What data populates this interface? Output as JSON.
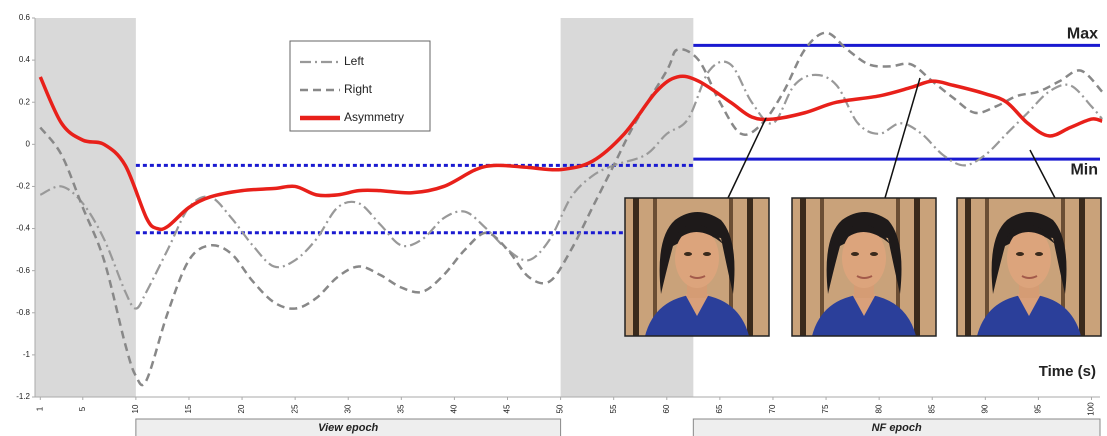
{
  "chart_data": {
    "type": "line",
    "xlabel": "Time (s)",
    "xlim": [
      0.5,
      100.8
    ],
    "ylim": [
      -1.2,
      0.6
    ],
    "yticks": [
      0.6,
      0.4,
      0.2,
      0,
      -0.2,
      -0.4,
      -0.6,
      -0.8,
      -1,
      -1.2
    ],
    "xticks": [
      1,
      5,
      10,
      15,
      20,
      25,
      30,
      35,
      40,
      45,
      50,
      55,
      60,
      65,
      70,
      75,
      80,
      85,
      90,
      95,
      100
    ],
    "shaded_ranges": [
      [
        0.5,
        10
      ],
      [
        50,
        62.5
      ]
    ],
    "reference_lines": [
      {
        "label": "Max",
        "value": 0.47,
        "xrange": [
          62.5,
          100.8
        ],
        "color": "#1a1ad0",
        "dashed": false
      },
      {
        "label": "Min",
        "value": -0.07,
        "xrange": [
          62.5,
          100.8
        ],
        "color": "#1a1ad0",
        "dashed": false
      },
      {
        "value": -0.1,
        "xrange": [
          10,
          62.5
        ],
        "color": "#1a1ad0",
        "dashed": true
      },
      {
        "value": -0.42,
        "xrange": [
          10,
          62.5
        ],
        "color": "#1a1ad0",
        "dashed": true
      }
    ],
    "epochs": [
      {
        "label": "View epoch",
        "range": [
          10,
          50
        ]
      },
      {
        "label": "NF epoch",
        "range": [
          62.5,
          100.8
        ]
      }
    ],
    "series": [
      {
        "name": "Left",
        "color": "#999999",
        "dash": "11,4,2,4",
        "width": 2.2,
        "x": [
          1,
          3,
          5,
          7,
          9,
          10,
          11,
          13,
          15,
          17,
          19,
          21,
          23,
          25,
          27,
          29,
          31,
          33,
          35,
          37,
          39,
          41,
          43,
          45,
          47,
          49,
          51,
          53,
          55,
          58,
          60,
          62,
          64,
          66,
          68,
          70,
          72,
          74,
          76,
          78,
          80,
          82,
          84,
          86,
          88,
          90,
          92,
          94,
          96,
          98,
          100,
          101
        ],
        "values": [
          -0.24,
          -0.2,
          -0.28,
          -0.45,
          -0.7,
          -0.78,
          -0.7,
          -0.5,
          -0.3,
          -0.25,
          -0.35,
          -0.48,
          -0.58,
          -0.55,
          -0.45,
          -0.3,
          -0.28,
          -0.38,
          -0.48,
          -0.45,
          -0.35,
          -0.32,
          -0.4,
          -0.5,
          -0.55,
          -0.45,
          -0.25,
          -0.15,
          -0.1,
          -0.05,
          0.05,
          0.12,
          0.35,
          0.38,
          0.2,
          0.1,
          0.28,
          0.33,
          0.28,
          0.1,
          0.05,
          0.1,
          0.05,
          -0.05,
          -0.1,
          -0.05,
          0.05,
          0.15,
          0.25,
          0.28,
          0.18,
          0.12
        ]
      },
      {
        "name": "Right",
        "color": "#888888",
        "dash": "8,5",
        "width": 2.5,
        "x": [
          1,
          3,
          5,
          7,
          9,
          10,
          11,
          13,
          15,
          17,
          19,
          21,
          23,
          25,
          27,
          29,
          31,
          33,
          35,
          37,
          39,
          41,
          43,
          45,
          47,
          49,
          51,
          53,
          55,
          57,
          60,
          61,
          63,
          65,
          67,
          69,
          71,
          73,
          75,
          77,
          79,
          81,
          83,
          85,
          87,
          89,
          91,
          93,
          95,
          97,
          99,
          101
        ],
        "values": [
          0.08,
          -0.05,
          -0.3,
          -0.55,
          -0.95,
          -1.1,
          -1.12,
          -0.8,
          -0.55,
          -0.48,
          -0.52,
          -0.65,
          -0.75,
          -0.78,
          -0.73,
          -0.63,
          -0.58,
          -0.62,
          -0.68,
          -0.7,
          -0.62,
          -0.5,
          -0.42,
          -0.5,
          -0.63,
          -0.65,
          -0.5,
          -0.3,
          -0.1,
          0.1,
          0.35,
          0.45,
          0.4,
          0.2,
          0.05,
          0.1,
          0.25,
          0.45,
          0.53,
          0.45,
          0.38,
          0.37,
          0.38,
          0.3,
          0.22,
          0.15,
          0.18,
          0.23,
          0.25,
          0.3,
          0.35,
          0.25
        ]
      },
      {
        "name": "Asymmetry",
        "color": "#e8201a",
        "dash": "",
        "width": 3.5,
        "x": [
          1,
          3,
          5,
          7,
          9,
          11,
          12,
          13,
          15,
          17,
          20,
          23,
          25,
          27,
          29,
          31,
          33,
          36,
          39,
          42,
          44,
          47,
          50,
          53,
          56,
          59,
          61,
          63,
          66,
          68,
          70,
          73,
          76,
          80,
          83,
          85,
          87,
          90,
          92,
          94,
          96,
          98,
          100,
          101
        ],
        "values": [
          0.32,
          0.1,
          0.02,
          0.0,
          -0.1,
          -0.35,
          -0.4,
          -0.39,
          -0.3,
          -0.25,
          -0.22,
          -0.21,
          -0.2,
          -0.24,
          -0.24,
          -0.22,
          -0.22,
          -0.23,
          -0.2,
          -0.12,
          -0.1,
          -0.11,
          -0.12,
          -0.08,
          0.05,
          0.25,
          0.32,
          0.3,
          0.2,
          0.13,
          0.12,
          0.15,
          0.2,
          0.23,
          0.27,
          0.3,
          0.28,
          0.24,
          0.2,
          0.1,
          0.04,
          0.08,
          0.12,
          0.11
        ]
      }
    ]
  }
}
